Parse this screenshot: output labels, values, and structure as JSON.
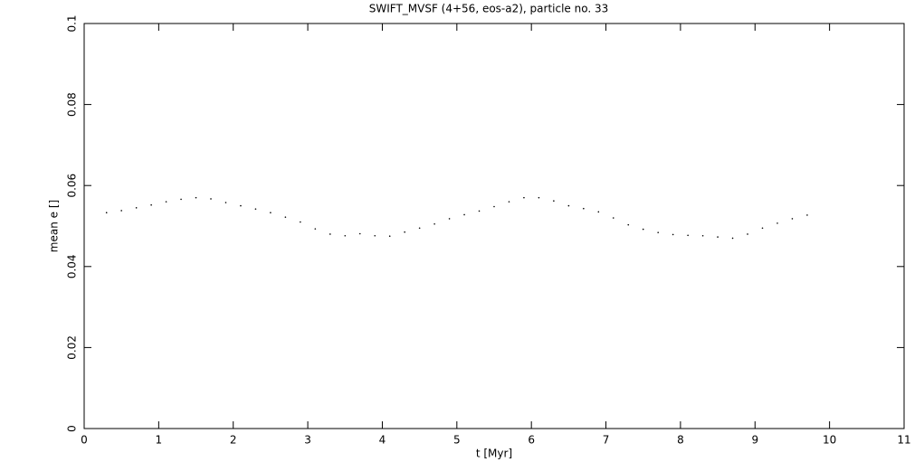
{
  "chart_data": {
    "type": "scatter",
    "title": "SWIFT_MVSF (4+56, eos-a2), particle no. 33",
    "x_label": "t [Myr]",
    "y_label": "mean e []",
    "x": [
      0.3,
      0.5,
      0.7,
      0.9,
      1.1,
      1.3,
      1.5,
      1.7,
      1.9,
      2.1,
      2.3,
      2.5,
      2.7,
      2.9,
      3.1,
      3.3,
      3.5,
      3.7,
      3.9,
      4.1,
      4.3,
      4.5,
      4.7,
      4.9,
      5.1,
      5.3,
      5.5,
      5.7,
      5.9,
      6.1,
      6.3,
      6.5,
      6.7,
      6.9,
      7.1,
      7.3,
      7.5,
      7.7,
      7.9,
      8.1,
      8.3,
      8.5,
      8.7,
      8.9,
      9.1,
      9.3,
      9.5,
      9.7
    ],
    "values": [
      0.0533,
      0.0538,
      0.0545,
      0.0552,
      0.056,
      0.0566,
      0.057,
      0.0567,
      0.0558,
      0.055,
      0.0542,
      0.0533,
      0.0522,
      0.051,
      0.0493,
      0.048,
      0.0476,
      0.0481,
      0.0476,
      0.0475,
      0.0485,
      0.0495,
      0.0505,
      0.0518,
      0.0528,
      0.0537,
      0.0548,
      0.056,
      0.057,
      0.057,
      0.0562,
      0.055,
      0.0543,
      0.0535,
      0.052,
      0.0503,
      0.0492,
      0.0484,
      0.0479,
      0.0477,
      0.0476,
      0.0473,
      0.047,
      0.048,
      0.0495,
      0.0507,
      0.0518,
      0.0527
    ],
    "color": "#000000",
    "xlim": [
      0,
      11
    ],
    "xticks": [
      0,
      1,
      2,
      3,
      4,
      5,
      6,
      7,
      8,
      9,
      10,
      11
    ],
    "ylim": [
      0,
      0.1
    ],
    "yticks": [
      0,
      0.02,
      0.04,
      0.06,
      0.08,
      0.1
    ]
  }
}
